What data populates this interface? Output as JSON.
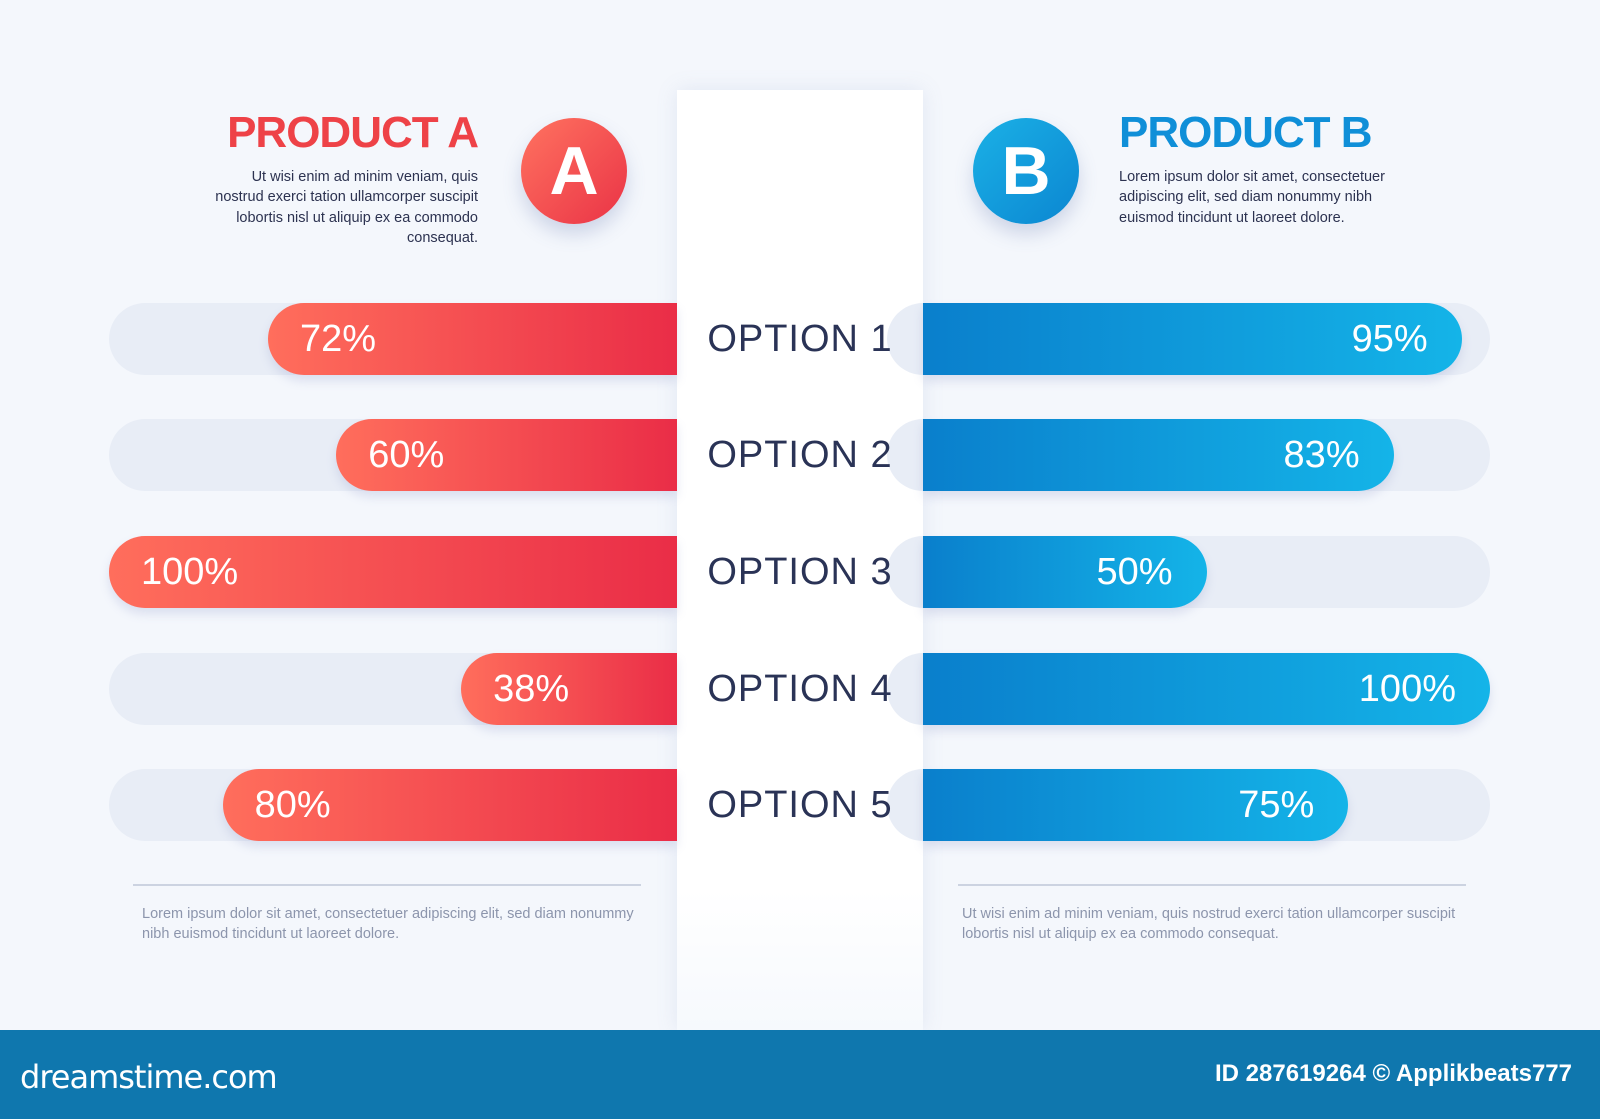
{
  "product_a": {
    "title": "PRODUCT A",
    "badge": "A",
    "description": "Ut wisi enim ad minim veniam, quis nostrud exerci tation ullamcorper suscipit lobortis nisl ut aliquip ex ea commodo consequat.",
    "footnote": "Lorem ipsum dolor sit amet, consectetuer adipiscing elit, sed diam nonummy nibh euismod tincidunt ut laoreet dolore.",
    "color": "#ee4247"
  },
  "product_b": {
    "title": "PRODUCT B",
    "badge": "B",
    "description": "Lorem ipsum dolor sit amet, consectetuer adipiscing elit, sed diam nonummy nibh euismod tincidunt ut laoreet dolore.",
    "footnote": "Ut wisi enim ad minim veniam, quis nostrud exerci tation ullamcorper suscipit lobortis nisl ut aliquip ex ea commodo consequat.",
    "color": "#0f8fd8"
  },
  "chart_data": {
    "type": "bar",
    "orientation": "horizontal-butterfly",
    "categories": [
      "OPTION 1",
      "OPTION 2",
      "OPTION 3",
      "OPTION 4",
      "OPTION 5"
    ],
    "series": [
      {
        "name": "PRODUCT A",
        "values": [
          72,
          60,
          100,
          38,
          80
        ],
        "labels": [
          "72%",
          "60%",
          "100%",
          "38%",
          "80%"
        ],
        "color": "#ee4247"
      },
      {
        "name": "PRODUCT B",
        "values": [
          95,
          83,
          50,
          100,
          75
        ],
        "labels": [
          "95%",
          "83%",
          "50%",
          "100%",
          "75%"
        ],
        "color": "#0f8fd8"
      }
    ],
    "xlim": [
      0,
      100
    ],
    "grid": false
  },
  "footer": {
    "logo": "dreamstime.com",
    "credit": "ID 287619264 © Applikbeats777",
    "color": "#0f77ae"
  }
}
